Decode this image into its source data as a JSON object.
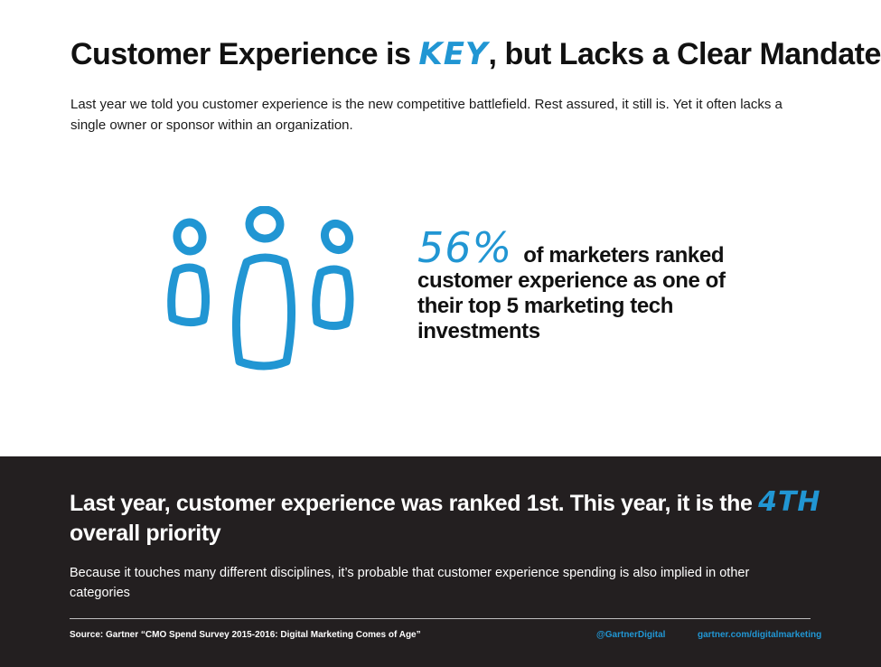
{
  "header": {
    "title_before": "Customer Experience is",
    "title_highlight": "KEY",
    "title_after": ", but Lacks a Clear Mandate",
    "intro": "Last year we told you customer experience is the new competitive battlefield.  Rest assured, it still is. Yet it often lacks a single owner or sponsor within an organization."
  },
  "stat": {
    "value": "56%",
    "text": "of marketers ranked customer experience as one of their top 5 marketing tech investments"
  },
  "priority": {
    "headline": "Last year, customer experience was ranked 1st. This year, it is the",
    "highlight": "4TH",
    "headline_end": "overall priority",
    "subtext": "Because it touches many different disciplines, it’s probable that customer experience spending is also implied in other categories"
  },
  "footer": {
    "source": "Source: Gartner “CMO Spend Survey 2015-2016: Digital Marketing Comes of Age”",
    "handle": "@GartnerDigital",
    "site": "gartner.com/digitalmarketing"
  },
  "colors": {
    "accent": "#2196d3",
    "dark_band": "#231f20",
    "text": "#111111"
  },
  "icons": [
    "people-group-icon"
  ]
}
